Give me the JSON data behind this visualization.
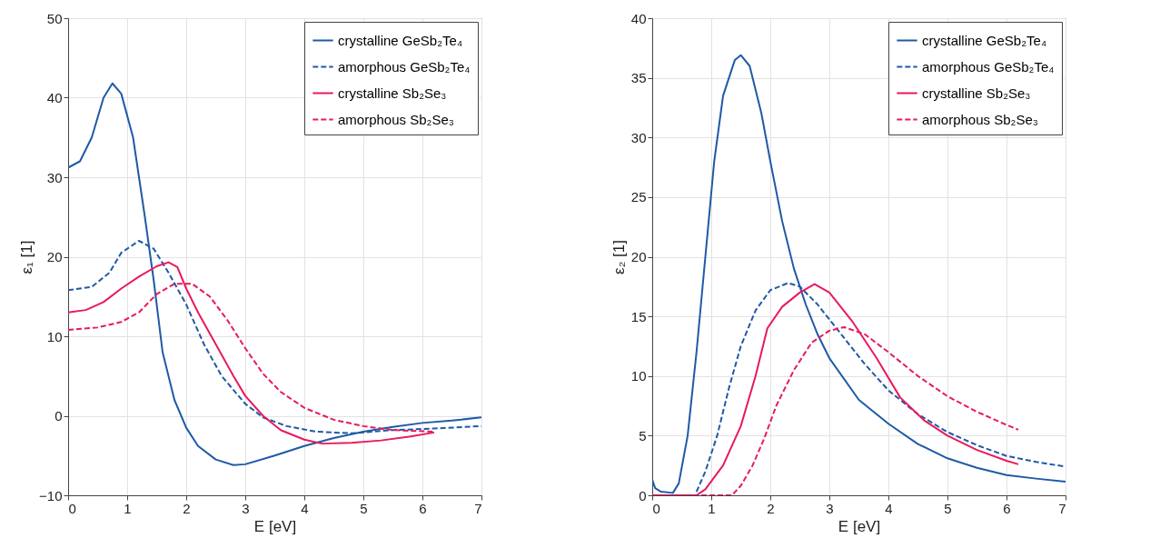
{
  "chart_data": [
    {
      "type": "line",
      "xlabel": "E [eV]",
      "ylabel": "ε₁ [1]",
      "xlim": [
        0,
        7
      ],
      "ylim": [
        -10,
        50
      ],
      "xticks": [
        0,
        1,
        2,
        3,
        4,
        5,
        6,
        7
      ],
      "yticks": [
        -10,
        0,
        10,
        20,
        30,
        40,
        50
      ],
      "grid": true,
      "legend": "top right",
      "series": [
        {
          "name": "crystalline GeSb₂Te₄",
          "color": "#1f5aa6",
          "line_style": "solid",
          "x": [
            0,
            0.2,
            0.4,
            0.6,
            0.75,
            0.9,
            1.1,
            1.3,
            1.45,
            1.6,
            1.8,
            2.0,
            2.2,
            2.5,
            2.8,
            3.0,
            3.5,
            4.0,
            4.5,
            5.0,
            5.5,
            6.0,
            6.5,
            7.0
          ],
          "values": [
            31.2,
            32,
            35,
            40,
            41.8,
            40.5,
            35,
            25,
            17,
            8,
            2,
            -1.5,
            -3.8,
            -5.5,
            -6.2,
            -6.1,
            -5,
            -3.8,
            -2.8,
            -2,
            -1.4,
            -0.9,
            -0.6,
            -0.2
          ]
        },
        {
          "name": "amorphous GeSb₂Te₄",
          "color": "#1f5aa6",
          "line_style": "dashed",
          "x": [
            0,
            0.4,
            0.7,
            0.9,
            1.2,
            1.45,
            1.7,
            2.0,
            2.3,
            2.6,
            3.0,
            3.3,
            3.7,
            4.2,
            4.8,
            5.5,
            6.2,
            7.0
          ],
          "values": [
            15.8,
            16.2,
            18,
            20.5,
            22,
            21,
            18,
            14,
            9,
            5,
            1.5,
            -0.2,
            -1.3,
            -2,
            -2.2,
            -1.8,
            -1.6,
            -1.3
          ]
        },
        {
          "name": "crystalline Sb₂Se₃",
          "color": "#e8195f",
          "line_style": "solid",
          "x": [
            0,
            0.3,
            0.6,
            0.9,
            1.2,
            1.5,
            1.7,
            1.85,
            2.0,
            2.2,
            2.5,
            2.8,
            3.0,
            3.3,
            3.6,
            4.0,
            4.3,
            4.8,
            5.3,
            5.8,
            6.2
          ],
          "values": [
            13,
            13.3,
            14.3,
            16,
            17.5,
            18.8,
            19.3,
            18.7,
            16,
            13,
            9,
            5,
            2.5,
            0,
            -1.8,
            -3,
            -3.5,
            -3.4,
            -3.1,
            -2.6,
            -2.1
          ]
        },
        {
          "name": "amorphous Sb₂Se₃",
          "color": "#e8195f",
          "line_style": "dashed",
          "x": [
            0,
            0.5,
            0.9,
            1.2,
            1.5,
            1.8,
            2.1,
            2.4,
            2.7,
            3.0,
            3.3,
            3.6,
            4.0,
            4.5,
            5.0,
            5.5,
            6.2
          ],
          "values": [
            10.8,
            11.1,
            11.8,
            13,
            15.3,
            16.6,
            16.6,
            15,
            12,
            8.5,
            5.3,
            3,
            1,
            -0.5,
            -1.3,
            -1.8,
            -2
          ]
        }
      ]
    },
    {
      "type": "line",
      "xlabel": "E [eV]",
      "ylabel": "ε₂ [1]",
      "xlim": [
        0,
        7
      ],
      "ylim": [
        0,
        40
      ],
      "xticks": [
        0,
        1,
        2,
        3,
        4,
        5,
        6,
        7
      ],
      "yticks": [
        0,
        5,
        10,
        15,
        20,
        25,
        30,
        35,
        40
      ],
      "grid": true,
      "legend": "top right",
      "series": [
        {
          "name": "crystalline GeSb₂Te₄",
          "color": "#1f5aa6",
          "line_style": "solid",
          "x": [
            0,
            0.05,
            0.15,
            0.35,
            0.45,
            0.6,
            0.75,
            0.9,
            1.05,
            1.2,
            1.4,
            1.5,
            1.65,
            1.85,
            2.0,
            2.2,
            2.4,
            2.6,
            2.8,
            3.0,
            3.5,
            4.0,
            4.5,
            5.0,
            5.5,
            6.0,
            6.5,
            7.0
          ],
          "values": [
            1.3,
            0.6,
            0.3,
            0.2,
            1,
            5,
            12,
            20,
            28,
            33.5,
            36.5,
            36.9,
            36,
            32,
            28,
            23,
            19,
            16,
            13.5,
            11.5,
            8,
            6,
            4.3,
            3.1,
            2.3,
            1.7,
            1.4,
            1.15
          ]
        },
        {
          "name": "amorphous GeSb₂Te₄",
          "color": "#1f5aa6",
          "line_style": "dashed",
          "x": [
            0.75,
            0.9,
            1.1,
            1.3,
            1.5,
            1.75,
            2.0,
            2.3,
            2.5,
            2.8,
            3.2,
            3.6,
            4.0,
            4.5,
            5.0,
            5.5,
            6.0,
            6.5,
            7.0
          ],
          "values": [
            0.3,
            2,
            5,
            9,
            12.5,
            15.5,
            17.2,
            17.8,
            17.5,
            16,
            13.5,
            11,
            8.8,
            6.8,
            5.3,
            4.2,
            3.3,
            2.8,
            2.4
          ]
        },
        {
          "name": "crystalline Sb₂Se₃",
          "color": "#e8195f",
          "line_style": "solid",
          "x": [
            0,
            0.75,
            0.9,
            1.2,
            1.5,
            1.75,
            1.95,
            2.2,
            2.5,
            2.75,
            3.0,
            3.4,
            3.8,
            4.2,
            4.6,
            5.0,
            5.5,
            6.0,
            6.2
          ],
          "values": [
            0,
            0,
            0.5,
            2.5,
            5.8,
            10,
            14,
            15.8,
            17,
            17.7,
            17,
            14.5,
            11.5,
            8.2,
            6.3,
            5,
            3.8,
            2.9,
            2.6
          ]
        },
        {
          "name": "amorphous Sb₂Se₃",
          "color": "#e8195f",
          "line_style": "dashed",
          "x": [
            0,
            1.35,
            1.5,
            1.7,
            1.9,
            2.1,
            2.4,
            2.7,
            3.0,
            3.25,
            3.6,
            4.0,
            4.5,
            5.0,
            5.5,
            6.0,
            6.2
          ],
          "values": [
            0,
            0,
            0.8,
            2.5,
            4.8,
            7.5,
            10.5,
            12.8,
            13.8,
            14.1,
            13.5,
            12,
            10,
            8.3,
            7,
            5.9,
            5.5
          ]
        }
      ]
    }
  ]
}
